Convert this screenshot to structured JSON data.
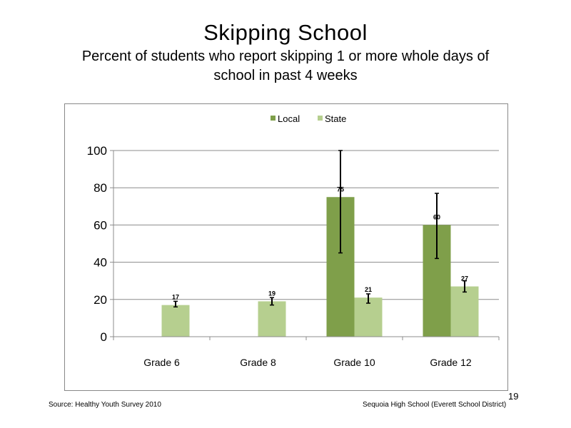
{
  "slide": {
    "title": "Skipping School",
    "subtitle_line1": "Percent of students who report skipping 1 or more whole days of",
    "subtitle_line2": "school in past 4 weeks",
    "source": "Source: Healthy Youth Survey 2010",
    "school": "Sequoia High School (Everett School District)",
    "page_number": "19"
  },
  "chart_data": {
    "type": "bar",
    "title": "",
    "xlabel": "",
    "ylabel": "",
    "categories": [
      "Grade 6",
      "Grade 8",
      "Grade 10",
      "Grade 12"
    ],
    "ylim": [
      0,
      100
    ],
    "yticks": [
      0,
      20,
      40,
      60,
      80,
      100
    ],
    "grid": true,
    "legend_position": "top-center",
    "series": [
      {
        "name": "Local",
        "color": "#7f9f4a",
        "values": [
          null,
          null,
          75,
          60
        ],
        "labels": [
          "",
          "",
          "75",
          "60"
        ],
        "error_low": [
          null,
          null,
          45,
          42
        ],
        "error_high": [
          null,
          null,
          100,
          77
        ]
      },
      {
        "name": "State",
        "color": "#b6cf8f",
        "values": [
          17,
          19,
          21,
          27
        ],
        "labels": [
          "17",
          "19",
          "21",
          "27"
        ],
        "error_low": [
          16,
          17,
          18,
          24
        ],
        "error_high": [
          19,
          21,
          23,
          30
        ]
      }
    ]
  }
}
